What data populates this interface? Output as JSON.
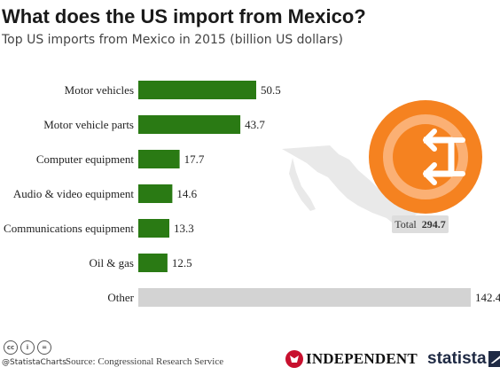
{
  "header": {
    "title": "What does the US import from Mexico?",
    "subtitle": "Top US imports from Mexico in 2015 (billion US dollars)"
  },
  "chart_data": {
    "type": "bar",
    "orientation": "horizontal",
    "title": "What does the US import from Mexico?",
    "subtitle": "Top US imports from Mexico in 2015 (billion US dollars)",
    "categories": [
      "Motor vehicles",
      "Motor vehicle parts",
      "Computer equipment",
      "Audio & video equipment",
      "Communications equipment",
      "Oil & gas",
      "Other"
    ],
    "values": [
      50.5,
      43.7,
      17.7,
      14.6,
      13.3,
      12.5,
      142.4
    ],
    "value_labels": [
      "50.5",
      "43.7",
      "17.7",
      "14.6",
      "13.3",
      "12.5",
      "142.4"
    ],
    "xlim": [
      0,
      142.4
    ],
    "grid": false,
    "legend": "none",
    "total_label": "Total",
    "total_value": "294.7"
  },
  "colors": {
    "bar_main": "#2a7a14",
    "bar_other": "#d3d3d3",
    "import_icon": "#f58220",
    "map": "#e9e9e9",
    "total_badge": "#dddddd"
  },
  "icons": {
    "import": "import-arrows-icon",
    "map": "mexico-map-icon",
    "cc": [
      "cc-icon",
      "by-icon",
      "nd-icon"
    ],
    "cc_glyphs": [
      "cc",
      "i",
      "="
    ]
  },
  "footer": {
    "handle": "@StatistaCharts",
    "source": "Source: Congressional Research Service",
    "publisher": "INDEPENDENT",
    "brand": "statista"
  }
}
